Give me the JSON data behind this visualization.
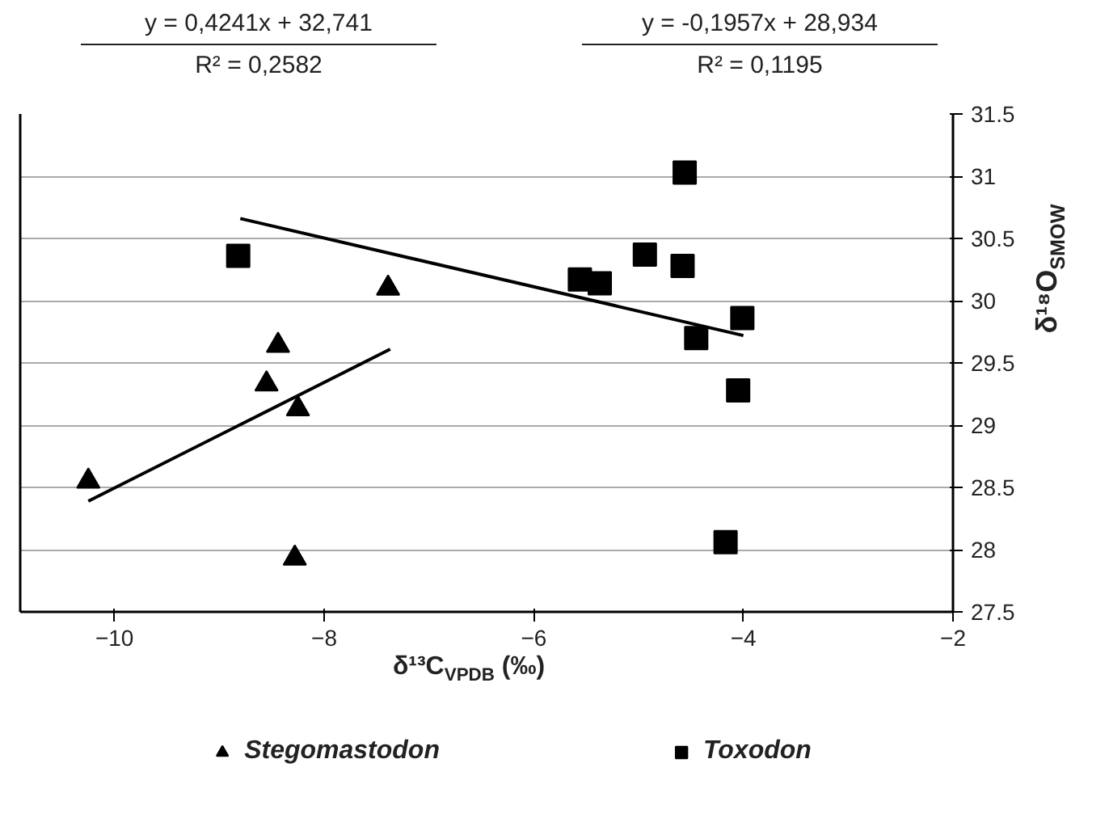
{
  "chart_data": {
    "type": "scatter",
    "xlabel": "δ¹³C$_{VPDB}$ (‰)",
    "ylabel": "δ¹⁸O$_{SMOW}$",
    "annotations": [
      "y = 0,4241x + 32,741",
      "R² = 0,2582",
      "y = -0,1957x + 28,934",
      "R² = 0,1195"
    ],
    "xlim": [
      -10.9,
      -2
    ],
    "xticks": [
      -10,
      -8,
      -6,
      -4,
      -2
    ],
    "ylim": [
      27.5,
      31.5
    ],
    "yticks": [
      27.5,
      28,
      28.5,
      29,
      29.5,
      30,
      30.5,
      31,
      31.5
    ],
    "grid": "y",
    "legend": "bottom",
    "series": [
      {
        "name": "Stegomastodon",
        "color": "#000000",
        "marker": "triangle",
        "x": [
          -10.25,
          -8.44,
          -8.55,
          -8.25,
          -7.39,
          -8.28
        ],
        "values": [
          28.55,
          29.64,
          29.33,
          29.13,
          30.1,
          27.93
        ]
      },
      {
        "name": "Toxodon",
        "color": "#000000",
        "marker": "square",
        "x": [
          -8.82,
          -5.56,
          -5.37,
          -4.94,
          -4.58,
          -4.56,
          -4.45,
          -4.01,
          -4.05,
          -4.17
        ],
        "values": [
          30.36,
          30.17,
          30.14,
          30.37,
          30.28,
          31.03,
          29.7,
          29.86,
          29.28,
          28.06
        ]
      },
      {
        "type": "line",
        "color": "#000000",
        "x": [
          -10.25,
          -7.37
        ],
        "values": [
          28.39,
          29.61
        ]
      },
      {
        "type": "line",
        "color": "#000000",
        "x": [
          -8.8,
          -4.0
        ],
        "values": [
          30.66,
          29.72
        ]
      }
    ]
  }
}
